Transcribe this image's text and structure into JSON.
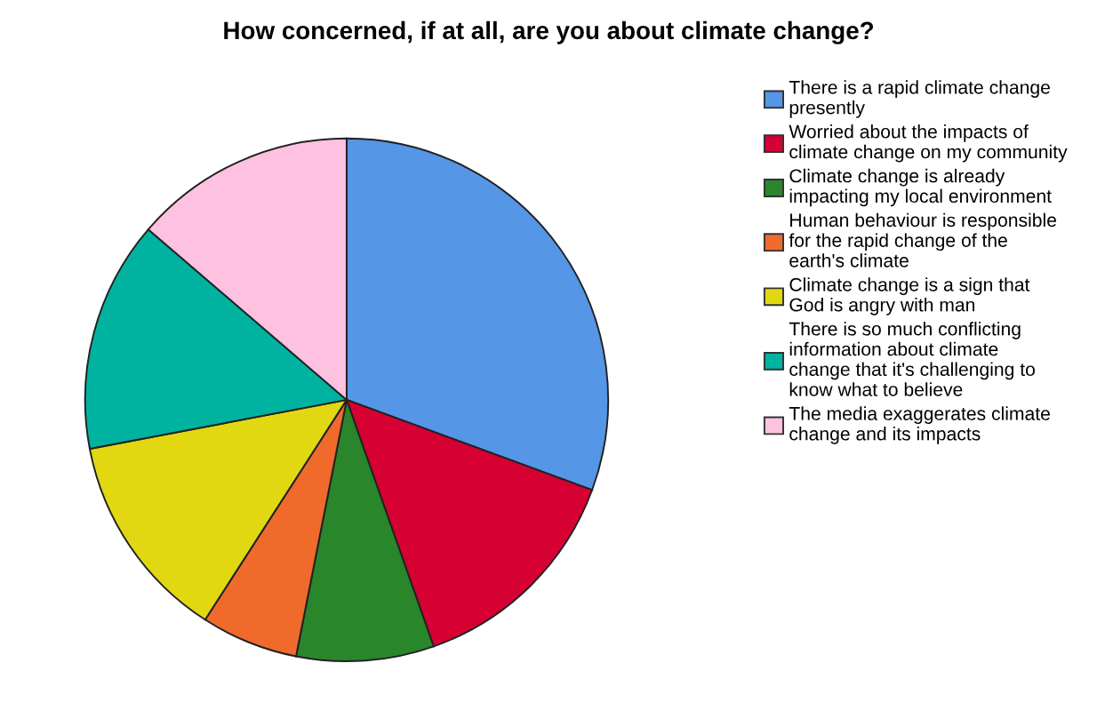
{
  "chart_data": {
    "type": "pie",
    "title": "How concerned, if at all, are you about climate change?",
    "categories": [
      "There is a rapid climate change presently",
      "Worried about the impacts of climate change on my community",
      "Climate change is already impacting my local environment",
      "Human behaviour is responsible for the rapid change of the earth's climate",
      "Climate change is a sign that God is angry with man",
      "There is so much conflicting information about climate change that it's challenging to know what to believe",
      "The media exaggerates climate change and its impacts"
    ],
    "values": [
      30.6,
      14.0,
      8.5,
      6.0,
      12.9,
      14.3,
      13.7
    ],
    "colors": [
      "#5596e6",
      "#d70033",
      "#29862b",
      "#f06a2c",
      "#e2d812",
      "#00b3a0",
      "#fec1e0"
    ],
    "legend": "right"
  }
}
